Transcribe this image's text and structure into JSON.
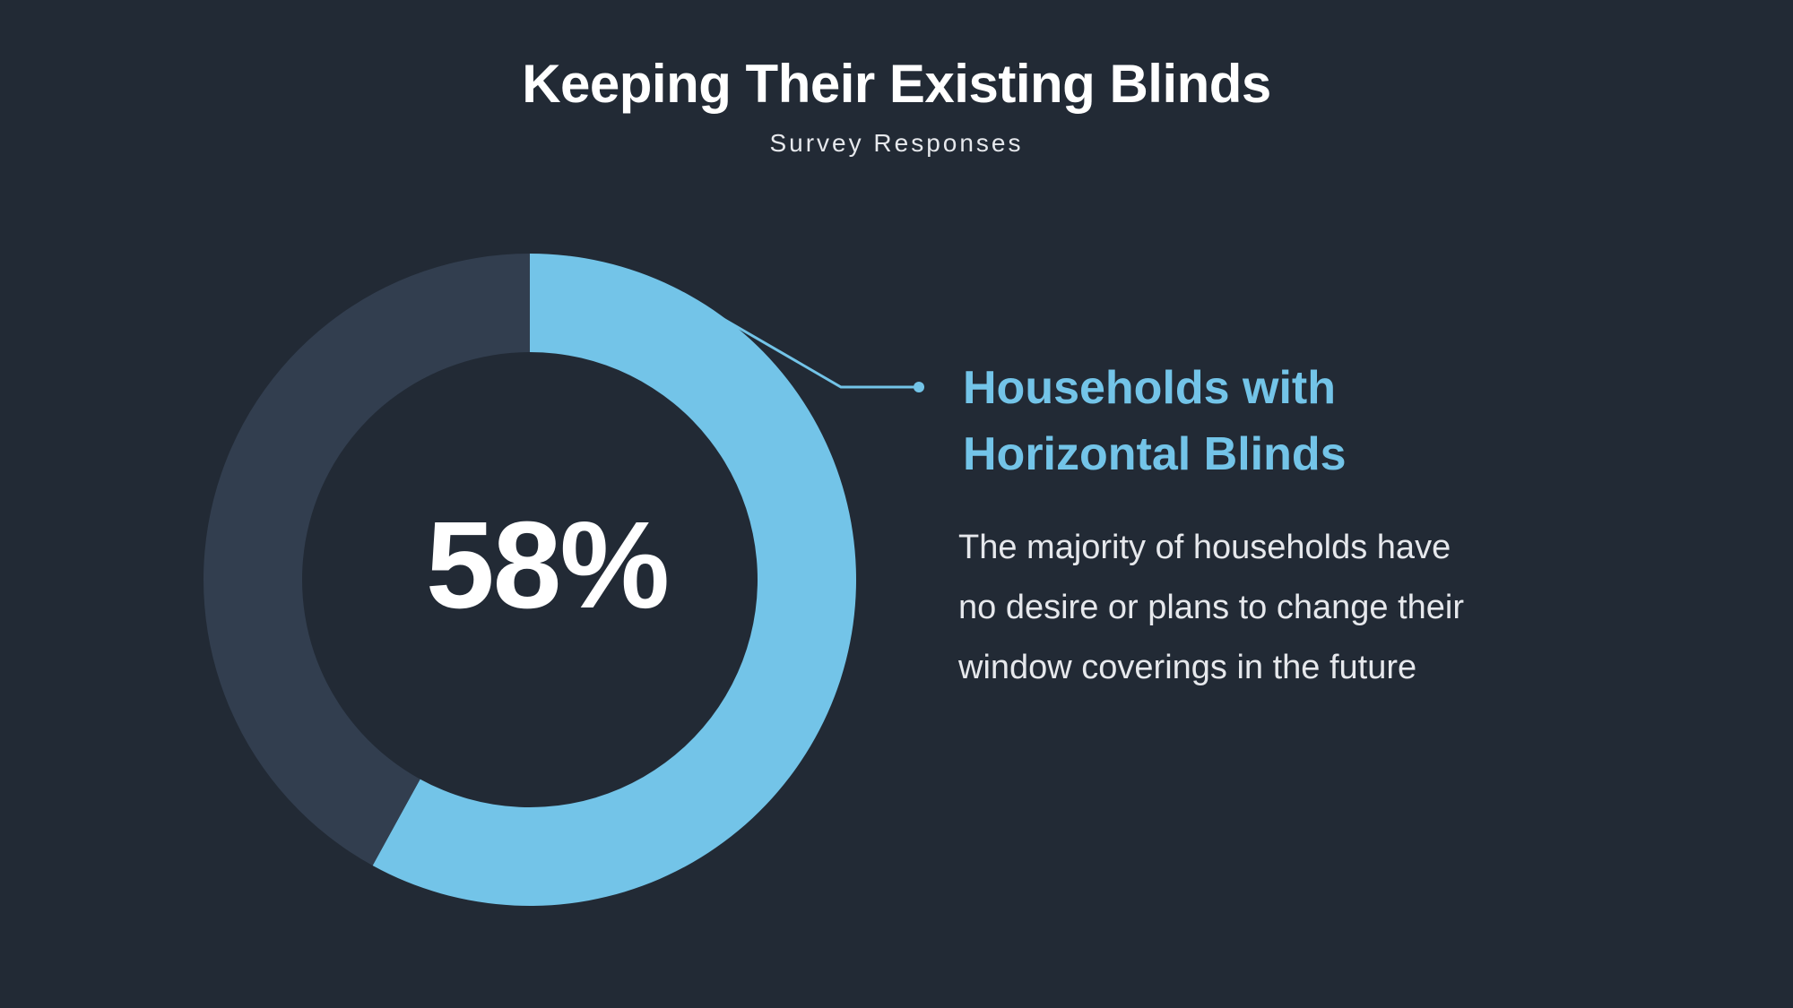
{
  "slide": {
    "title": "Keeping Their Existing Blinds",
    "subtitle": "Survey Responses"
  },
  "callout": {
    "heading_line1": "Households with",
    "heading_line2": "Horizontal Blinds",
    "body_line1": "The majority of households have",
    "body_line2": "no desire or plans to change their",
    "body_line3": "window coverings in the future"
  },
  "chart_data": {
    "type": "pie",
    "style": "donut",
    "start_angle": "12 o'clock, clockwise",
    "center_label": "58%",
    "slices": [
      {
        "value": 58,
        "color": "#73c4e8"
      },
      {
        "value": 42,
        "color": "#323e4f"
      }
    ],
    "leader_line_color": "#73c4e8"
  }
}
